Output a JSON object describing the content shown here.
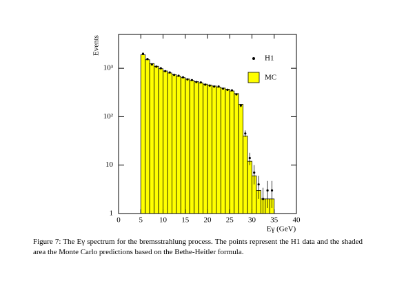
{
  "chart_data": {
    "type": "histogram",
    "ylabel": "Events",
    "xlabel": "Eγ (GeV)",
    "xlim": [
      0,
      40
    ],
    "xticks": [
      0,
      5,
      10,
      15,
      20,
      25,
      30,
      35,
      40
    ],
    "ylim": [
      1,
      5000
    ],
    "log_y": true,
    "yticks": [
      1,
      10,
      {
        "value": 100,
        "label": "10²"
      },
      {
        "value": 1000,
        "label": "10³"
      }
    ],
    "legend": "upper right",
    "bins": [
      5,
      6,
      7,
      8,
      9,
      10,
      11,
      12,
      13,
      14,
      15,
      16,
      17,
      18,
      19,
      20,
      21,
      22,
      23,
      24,
      25,
      26,
      27,
      28,
      29,
      30,
      31,
      32,
      33,
      34,
      35
    ],
    "series": [
      {
        "name": "MC",
        "color": "#ffff00",
        "values": [
          1900,
          1500,
          1250,
          1100,
          980,
          880,
          800,
          740,
          690,
          640,
          600,
          560,
          530,
          500,
          470,
          450,
          430,
          410,
          390,
          370,
          340,
          300,
          180,
          40,
          12,
          6,
          3,
          2,
          2,
          2
        ]
      },
      {
        "name": "H1",
        "color": "#000000",
        "x": [
          5.5,
          6.5,
          7.5,
          8.5,
          9.5,
          10.5,
          11.5,
          12.5,
          13.5,
          14.5,
          15.5,
          16.5,
          17.5,
          18.5,
          19.5,
          20.5,
          21.5,
          22.5,
          23.5,
          24.5,
          25.5,
          26.5,
          27.5,
          28.5,
          29.5,
          30.5,
          31.5,
          32.5,
          33.5,
          34.5
        ],
        "values": [
          2000,
          1550,
          1200,
          1080,
          1000,
          870,
          820,
          730,
          700,
          650,
          590,
          570,
          520,
          510,
          460,
          440,
          420,
          420,
          380,
          360,
          350,
          290,
          170,
          45,
          14,
          7,
          4,
          2,
          3,
          3
        ],
        "errors": [
          45,
          39,
          35,
          33,
          32,
          29,
          29,
          27,
          26,
          25,
          24,
          24,
          23,
          23,
          21,
          21,
          20,
          20,
          19,
          19,
          19,
          17,
          13,
          7,
          4,
          3,
          2,
          1.4,
          1.7,
          1.7
        ]
      }
    ],
    "caption": "Figure 7: The Eγ spectrum for the bremsstrahlung process. The points represent the H1 data and the shaded area the Monte Carlo predictions based on the Bethe-Heitler formula."
  }
}
